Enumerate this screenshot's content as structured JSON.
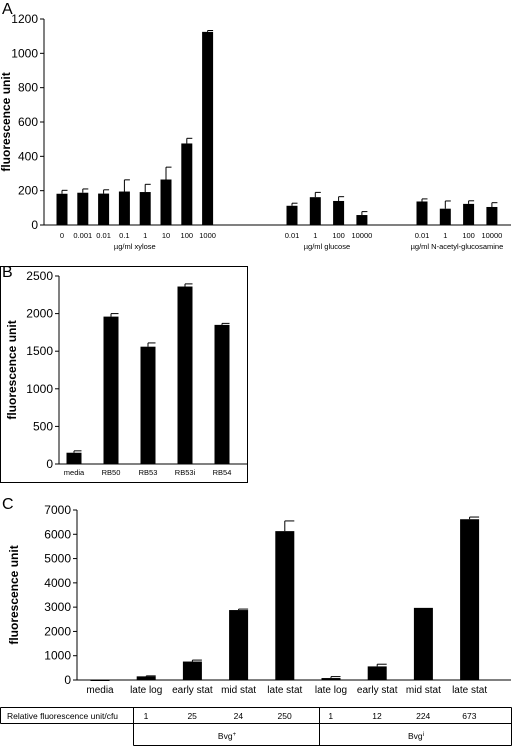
{
  "chart_data": [
    {
      "panel": "A",
      "type": "bar",
      "ylabel": "fluorescence unit",
      "ylim": [
        0,
        1200
      ],
      "yticks": [
        0,
        200,
        400,
        600,
        800,
        1000,
        1200
      ],
      "groups": [
        {
          "label": "µg/ml xylose",
          "categories": [
            "0",
            "0.001",
            "0.01",
            "0.1",
            "1",
            "10",
            "100",
            "1000"
          ],
          "values": [
            182,
            188,
            183,
            195,
            192,
            265,
            475,
            1125
          ],
          "errors": [
            20,
            22,
            22,
            68,
            45,
            72,
            30,
            8
          ]
        },
        {
          "label": "µg/ml glucose",
          "categories": [
            "0.01",
            "1",
            "100",
            "10000"
          ],
          "values": [
            112,
            162,
            140,
            58
          ],
          "errors": [
            15,
            28,
            25,
            20
          ]
        },
        {
          "label": "µg/ml N-acetyl-glucosamine",
          "categories": [
            "0.01",
            "1",
            "100",
            "10000"
          ],
          "values": [
            137,
            95,
            123,
            105
          ],
          "errors": [
            15,
            45,
            18,
            25
          ]
        }
      ]
    },
    {
      "panel": "B",
      "type": "bar",
      "ylabel": "fluorescence unit",
      "ylim": [
        0,
        2500
      ],
      "yticks": [
        0,
        500,
        1000,
        1500,
        2000,
        2500
      ],
      "categories": [
        "media",
        "RB50",
        "RB53",
        "RB53i",
        "RB54"
      ],
      "values": [
        150,
        1960,
        1560,
        2360,
        1850
      ],
      "errors": [
        25,
        40,
        50,
        35,
        20
      ]
    },
    {
      "panel": "C",
      "type": "bar",
      "ylabel": "fluorescence unit",
      "ylim": [
        0,
        7000
      ],
      "yticks": [
        0,
        1000,
        2000,
        3000,
        4000,
        5000,
        6000,
        7000
      ],
      "categories": [
        "media",
        "late log",
        "early stat",
        "mid stat",
        "late stat",
        "late log",
        "early stat",
        "mid stat",
        "late stat"
      ],
      "values": [
        -20,
        150,
        760,
        2880,
        6130,
        80,
        560,
        2970,
        6620
      ],
      "errors": [
        20,
        20,
        60,
        40,
        420,
        60,
        90,
        0,
        90
      ]
    }
  ],
  "table": {
    "row_label": "Relative fluorescence unit/cfu",
    "values": [
      "1",
      "25",
      "24",
      "250",
      "1",
      "12",
      "224",
      "673"
    ],
    "groups": [
      {
        "label": "Bvg",
        "sup": "+"
      },
      {
        "label": "Bvg",
        "sup": "i"
      }
    ]
  }
}
